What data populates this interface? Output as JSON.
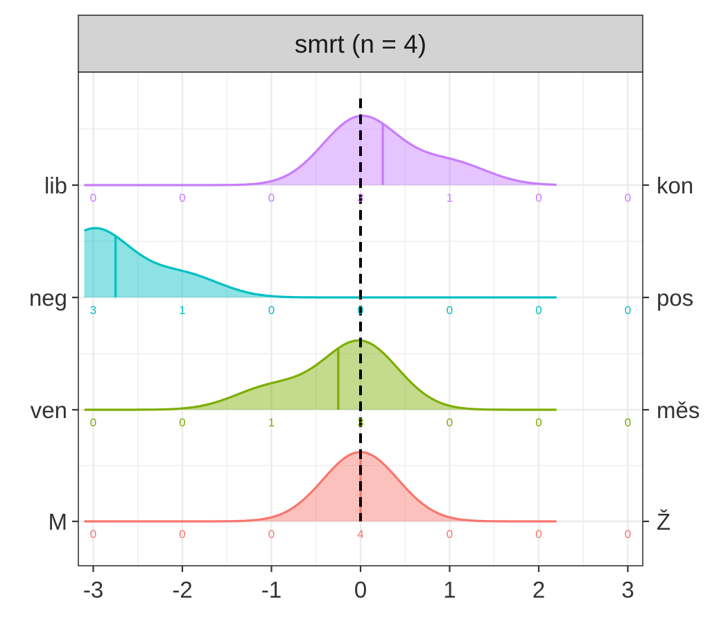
{
  "chart_data": {
    "type": "density-ridgeline",
    "facet_title": "smrt (n = 4)",
    "xlim": [
      -3.1,
      3.1
    ],
    "x_ticks": [
      -3,
      -2,
      -1,
      0,
      1,
      2,
      3
    ],
    "x_tick_labels": [
      "-3",
      "-2",
      "-1",
      "0",
      "1",
      "2",
      "3"
    ],
    "reference_line_x": 0,
    "grid": true,
    "categories": [
      -3,
      -2,
      -1,
      0,
      1,
      2,
      3
    ],
    "series": [
      {
        "left_label": "lib",
        "right_label": "kon",
        "color": "#C77CFF",
        "counts": [
          0,
          0,
          0,
          3,
          1,
          0,
          0
        ],
        "mean": 0.25
      },
      {
        "left_label": "neg",
        "right_label": "pos",
        "color": "#00BFC4",
        "counts": [
          3,
          1,
          0,
          0,
          0,
          0,
          0
        ],
        "mean": -2.75
      },
      {
        "left_label": "ven",
        "right_label": "měs",
        "color": "#7CAE00",
        "counts": [
          0,
          0,
          1,
          3,
          0,
          0,
          0
        ],
        "mean": -0.25
      },
      {
        "left_label": "M",
        "right_label": "Ž",
        "color": "#F8766D",
        "counts": [
          0,
          0,
          0,
          4,
          0,
          0,
          0
        ],
        "mean": 0
      }
    ]
  }
}
